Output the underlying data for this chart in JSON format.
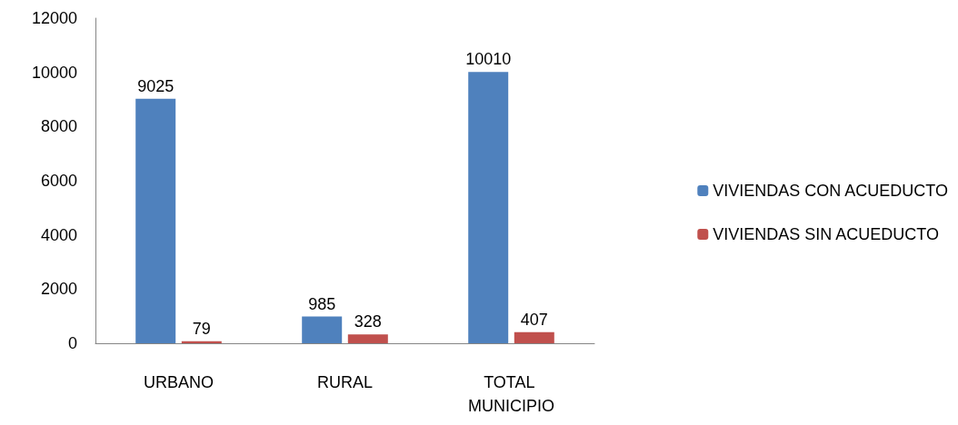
{
  "chart_data": {
    "type": "bar",
    "categories": [
      "URBANO",
      "RURAL",
      "TOTAL MUNICIPIO"
    ],
    "series": [
      {
        "name": "VIVIENDAS CON ACUEDUCTO",
        "color": "#4f81bd",
        "values": [
          9025,
          985,
          10010
        ]
      },
      {
        "name": "VIVIENDAS SIN ACUEDUCTO",
        "color": "#c0504d",
        "values": [
          79,
          328,
          407
        ]
      }
    ],
    "ylim": [
      0,
      12000
    ],
    "yticks": [
      0,
      2000,
      4000,
      6000,
      8000,
      10000,
      12000
    ],
    "grid": false,
    "legend": "right",
    "data_labels": true
  }
}
